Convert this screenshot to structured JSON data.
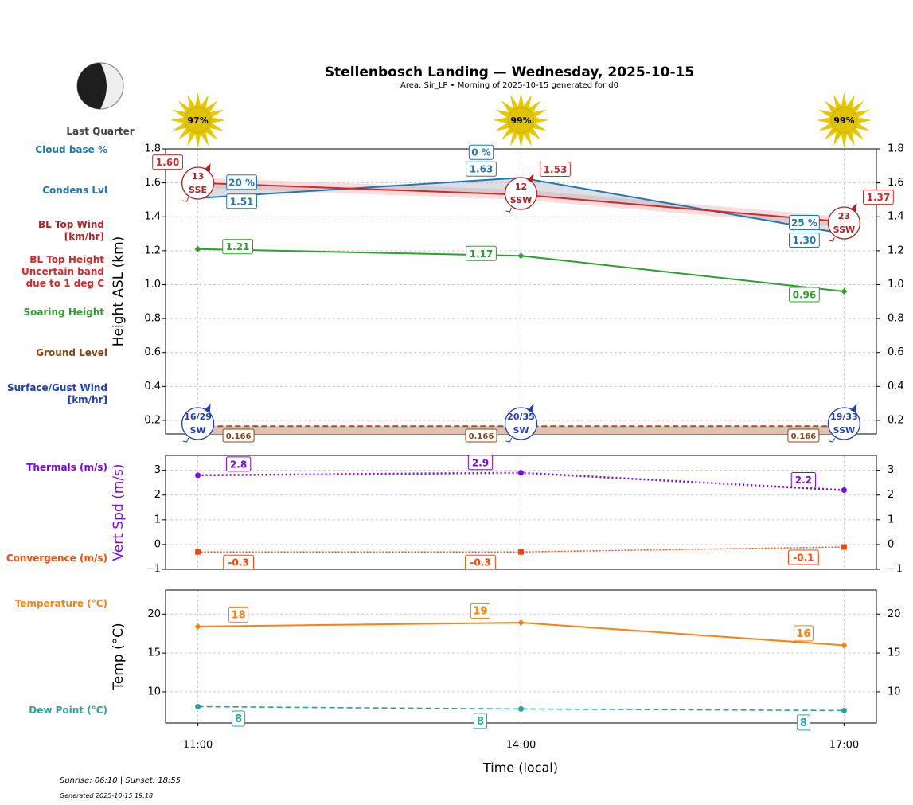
{
  "header": {
    "title": "Stellenbosch Landing — Wednesday, 2025-10-15",
    "subtitle": "Area: Sir_LP • Morning of 2025-10-15 generated for d0",
    "moon_phase": "Last Quarter"
  },
  "side_labels": {
    "cloud_base": "Cloud base %",
    "condens": "Condens Lvl",
    "bl_wind": "BL Top Wind\n[km/hr]",
    "bl_top": "BL Top Height\nUncertain band\ndue to 1 deg C",
    "soaring": "Soaring Height",
    "ground": "Ground Level",
    "surface_wind": "Surface/Gust Wind\n[km/hr]",
    "thermals": "Thermals (m/s)",
    "convergence": "Convergence (m/s)",
    "temperature": "Temperature (°C)",
    "dew_point": "Dew Point (°C)"
  },
  "footer": {
    "sun": "Sunrise: 06:10 | Sunset: 18:55",
    "generated": "Generated 2025-10-15 19:18"
  },
  "colors": {
    "condens": "#1f77b4",
    "bl_top": "#d62728",
    "bl_wind": "#b22222",
    "soaring": "#2ca02c",
    "ground": "#8b4513",
    "surface_wind": "#1f3fbf",
    "thermals": "#7f00ff",
    "convergence": "#ff4500",
    "temperature": "#ff7f0e",
    "dew_point": "#26a69a",
    "sun": "#e6c800"
  },
  "chart_data": [
    {
      "type": "line",
      "ylabel": "Height ASL (km)",
      "ylim": [
        0.12,
        1.8
      ],
      "yticks": [
        0.2,
        0.4,
        0.6,
        0.8,
        1.0,
        1.2,
        1.4,
        1.6,
        1.8
      ],
      "x_hours": [
        11,
        14,
        17
      ],
      "xlim": [
        10.7,
        17.3
      ],
      "grid": true,
      "sun_percent": [
        "97%",
        "99%",
        "99%"
      ],
      "series": [
        {
          "name": "Condens Lvl",
          "values": [
            1.51,
            1.63,
            1.3
          ],
          "labels": [
            "1.51",
            "1.63",
            "1.30"
          ],
          "cloud_pct": [
            "20 %",
            "0 %",
            "25 %"
          ]
        },
        {
          "name": "BL Top Height",
          "values": [
            1.6,
            1.53,
            1.37
          ],
          "labels": [
            "1.60",
            "1.53",
            "1.37"
          ],
          "band": 0.03
        },
        {
          "name": "Soaring Height",
          "values": [
            1.21,
            1.17,
            0.96
          ],
          "labels": [
            "1.21",
            "1.17",
            "0.96"
          ]
        },
        {
          "name": "Ground Level",
          "values": [
            0.166,
            0.166,
            0.166
          ],
          "labels": [
            "0.166",
            "0.166",
            "0.166"
          ]
        }
      ],
      "bl_wind": [
        {
          "speed": "13",
          "dir": "SSE"
        },
        {
          "speed": "12",
          "dir": "SSW"
        },
        {
          "speed": "23",
          "dir": "SSW"
        }
      ],
      "surface_wind": [
        {
          "speed": "16/29",
          "dir": "SW"
        },
        {
          "speed": "20/35",
          "dir": "SW"
        },
        {
          "speed": "19/33",
          "dir": "SSW"
        }
      ]
    },
    {
      "type": "line",
      "ylabel": "Vert Spd (m/s)",
      "ylim": [
        -1,
        3.6
      ],
      "yticks": [
        -1,
        0,
        1,
        2,
        3
      ],
      "series": [
        {
          "name": "Thermals",
          "values": [
            2.8,
            2.9,
            2.2
          ],
          "labels": [
            "2.8",
            "2.9",
            "2.2"
          ]
        },
        {
          "name": "Convergence",
          "values": [
            -0.3,
            -0.3,
            -0.1
          ],
          "labels": [
            "-0.3",
            "-0.3",
            "-0.1"
          ]
        }
      ]
    },
    {
      "type": "line",
      "ylabel": "Temp (°C)",
      "xlabel": "Time (local)",
      "xticklabels": [
        "11:00",
        "14:00",
        "17:00"
      ],
      "ylim": [
        6,
        23.1
      ],
      "yticks": [
        10,
        15,
        20
      ],
      "series": [
        {
          "name": "Temperature",
          "values": [
            18.4,
            18.9,
            16.0
          ],
          "labels": [
            "18",
            "19",
            "16"
          ]
        },
        {
          "name": "Dew Point",
          "values": [
            8.1,
            7.8,
            7.6
          ],
          "labels": [
            "8",
            "8",
            "8"
          ]
        }
      ]
    }
  ]
}
